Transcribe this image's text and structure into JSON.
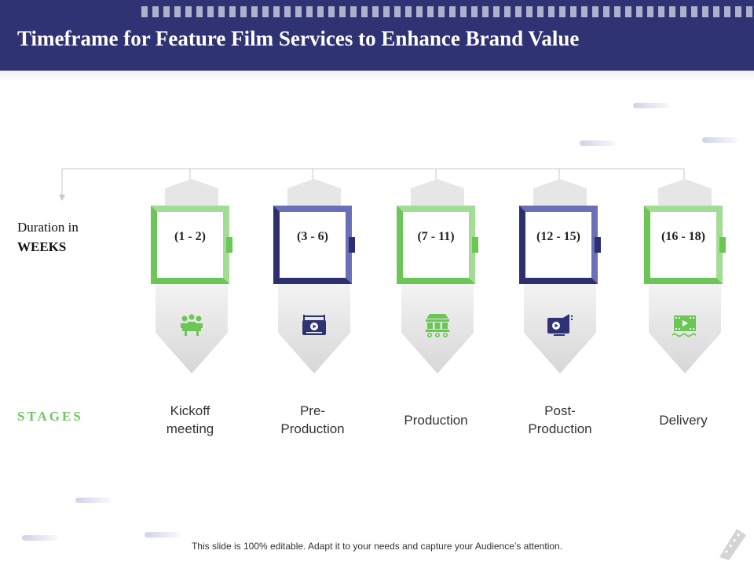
{
  "title": "Timeframe for Feature Film Services to Enhance Brand Value",
  "duration_label": {
    "line1": "Duration in",
    "line2": "WEEKS"
  },
  "stages_label": "STAGES",
  "columns": [
    {
      "range": "(1 - 2)",
      "stage": "Kickoff meeting",
      "theme": "green",
      "icon": "team-meeting-icon"
    },
    {
      "range": "(3 - 6)",
      "stage": "Pre-Production",
      "theme": "navy",
      "icon": "video-player-icon"
    },
    {
      "range": "(7 - 11)",
      "stage": "Production",
      "theme": "green",
      "icon": "film-studio-icon"
    },
    {
      "range": "(12 - 15)",
      "stage": "Post-Production",
      "theme": "navy",
      "icon": "video-promotion-icon"
    },
    {
      "range": "(16 - 18)",
      "stage": "Delivery",
      "theme": "green",
      "icon": "film-reel-icon"
    }
  ],
  "stage_display": {
    "s0": [
      "Kickoff",
      "meeting"
    ],
    "s1": [
      "Pre-",
      "Production"
    ],
    "s3": [
      "Post-",
      "Production"
    ]
  },
  "footer": "This slide is 100% editable. Adapt it to your needs and capture your Audience’s attention.",
  "colors": {
    "navy": "#2f3373",
    "green": "#6bc657",
    "light_green": "#a3dd95",
    "light_navy": "#6b6fb7"
  }
}
